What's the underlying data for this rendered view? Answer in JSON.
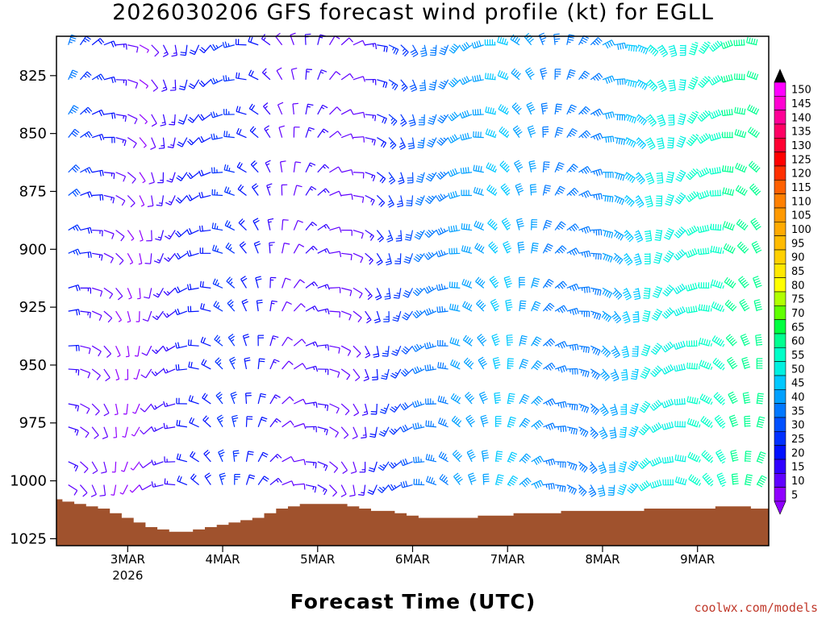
{
  "title": "2026030206 GFS forecast wind profile (kt) for EGLL",
  "xlabel": "Forecast Time (UTC)",
  "credit": "coolwx.com/models",
  "chart_data": {
    "type": "wind-barb time-height",
    "title": "2026030206 GFS forecast wind profile (kt) for EGLL",
    "xlabel": "Forecast Time (UTC)",
    "ylabel": "",
    "x_start": "2026-03-02 06Z",
    "x_step_hours": 3,
    "x_ticks": [
      {
        "label": "3MAR",
        "sub": "2026",
        "hour": 18
      },
      {
        "label": "4MAR",
        "sub": "",
        "hour": 42
      },
      {
        "label": "5MAR",
        "sub": "",
        "hour": 66
      },
      {
        "label": "6MAR",
        "sub": "",
        "hour": 90
      },
      {
        "label": "7MAR",
        "sub": "",
        "hour": 114
      },
      {
        "label": "8MAR",
        "sub": "",
        "hour": 138
      },
      {
        "label": "9MAR",
        "sub": "",
        "hour": 162
      }
    ],
    "xlim_hours": [
      0,
      180
    ],
    "y_ticks": [
      825,
      850,
      875,
      900,
      925,
      950,
      975,
      1000,
      1025
    ],
    "ylim_hpa": [
      808,
      1028
    ],
    "levels_hpa": [
      810,
      825,
      840,
      850,
      865,
      875,
      890,
      900,
      915,
      925,
      940,
      950,
      965,
      975,
      990,
      1000
    ],
    "wind_kt_by_level": [
      [
        40,
        35,
        25,
        22,
        20,
        15,
        10,
        8,
        10,
        15,
        15,
        20,
        20,
        20,
        25,
        25,
        22,
        20,
        15,
        12,
        12,
        15,
        15,
        12,
        10,
        12,
        15,
        20,
        25,
        28,
        30,
        35,
        35,
        38,
        40,
        42,
        44,
        45,
        45,
        42,
        40,
        38,
        35,
        35,
        35,
        38,
        40,
        42,
        45,
        48,
        50,
        50,
        50,
        52,
        55,
        55,
        58,
        60,
        60,
        60,
        55
      ],
      [
        42,
        38,
        28,
        25,
        22,
        15,
        10,
        8,
        10,
        15,
        15,
        20,
        20,
        20,
        25,
        25,
        22,
        20,
        15,
        12,
        12,
        15,
        15,
        12,
        10,
        12,
        15,
        20,
        25,
        28,
        30,
        35,
        35,
        38,
        40,
        42,
        44,
        45,
        45,
        42,
        40,
        38,
        35,
        35,
        35,
        38,
        40,
        42,
        45,
        48,
        50,
        50,
        50,
        52,
        55,
        55,
        58,
        60,
        60,
        60,
        55
      ],
      [
        40,
        36,
        28,
        24,
        20,
        15,
        10,
        8,
        10,
        15,
        15,
        20,
        20,
        22,
        25,
        25,
        22,
        20,
        15,
        12,
        12,
        15,
        15,
        12,
        10,
        12,
        15,
        20,
        25,
        28,
        30,
        35,
        35,
        38,
        40,
        42,
        44,
        45,
        45,
        42,
        40,
        38,
        35,
        35,
        35,
        38,
        40,
        42,
        45,
        48,
        50,
        50,
        50,
        52,
        55,
        55,
        58,
        60,
        60,
        60,
        55
      ],
      [
        38,
        34,
        28,
        24,
        20,
        15,
        10,
        8,
        10,
        15,
        15,
        20,
        20,
        22,
        25,
        25,
        22,
        20,
        15,
        12,
        12,
        15,
        15,
        12,
        10,
        12,
        15,
        20,
        25,
        28,
        30,
        35,
        35,
        38,
        40,
        42,
        44,
        45,
        45,
        42,
        40,
        38,
        35,
        35,
        35,
        38,
        40,
        42,
        45,
        48,
        50,
        50,
        50,
        52,
        55,
        55,
        58,
        60,
        60,
        60,
        55
      ],
      [
        36,
        32,
        26,
        22,
        18,
        14,
        10,
        8,
        10,
        15,
        15,
        20,
        20,
        22,
        25,
        25,
        22,
        20,
        15,
        12,
        12,
        15,
        15,
        12,
        10,
        12,
        15,
        20,
        25,
        28,
        30,
        35,
        35,
        38,
        40,
        42,
        44,
        45,
        45,
        42,
        40,
        38,
        35,
        35,
        35,
        38,
        40,
        42,
        45,
        48,
        50,
        50,
        50,
        52,
        55,
        55,
        58,
        60,
        60,
        60,
        55
      ],
      [
        34,
        30,
        24,
        20,
        16,
        12,
        10,
        8,
        10,
        15,
        15,
        20,
        20,
        22,
        25,
        25,
        22,
        20,
        15,
        12,
        12,
        15,
        15,
        12,
        10,
        12,
        15,
        20,
        25,
        28,
        30,
        35,
        35,
        38,
        40,
        42,
        44,
        45,
        45,
        42,
        40,
        38,
        35,
        35,
        35,
        38,
        40,
        42,
        45,
        48,
        50,
        50,
        50,
        52,
        55,
        55,
        58,
        60,
        60,
        60,
        55
      ],
      [
        32,
        28,
        22,
        18,
        14,
        10,
        8,
        8,
        10,
        15,
        15,
        20,
        20,
        22,
        25,
        25,
        22,
        20,
        15,
        12,
        12,
        15,
        15,
        12,
        10,
        12,
        15,
        20,
        25,
        28,
        30,
        35,
        35,
        38,
        40,
        42,
        44,
        45,
        45,
        42,
        40,
        38,
        35,
        35,
        35,
        38,
        40,
        42,
        45,
        48,
        50,
        50,
        50,
        52,
        55,
        55,
        58,
        60,
        60,
        60,
        55
      ],
      [
        30,
        26,
        20,
        16,
        12,
        10,
        8,
        8,
        10,
        15,
        15,
        20,
        20,
        22,
        25,
        25,
        22,
        20,
        15,
        12,
        12,
        15,
        15,
        12,
        10,
        12,
        15,
        20,
        25,
        28,
        30,
        35,
        35,
        38,
        40,
        42,
        44,
        45,
        45,
        42,
        40,
        38,
        35,
        35,
        35,
        38,
        40,
        42,
        45,
        48,
        50,
        50,
        50,
        52,
        55,
        55,
        58,
        60,
        60,
        60,
        55
      ],
      [
        28,
        24,
        18,
        14,
        12,
        10,
        8,
        8,
        10,
        15,
        15,
        20,
        20,
        22,
        25,
        25,
        22,
        20,
        15,
        12,
        12,
        15,
        15,
        12,
        10,
        12,
        15,
        20,
        25,
        28,
        30,
        35,
        35,
        38,
        40,
        42,
        44,
        45,
        45,
        42,
        40,
        38,
        35,
        35,
        35,
        38,
        40,
        42,
        45,
        48,
        50,
        50,
        50,
        52,
        55,
        55,
        58,
        60,
        60,
        60,
        55
      ],
      [
        26,
        22,
        16,
        12,
        10,
        8,
        8,
        8,
        10,
        15,
        15,
        20,
        20,
        22,
        25,
        25,
        22,
        20,
        15,
        12,
        12,
        15,
        15,
        12,
        10,
        12,
        15,
        20,
        25,
        28,
        30,
        35,
        35,
        38,
        40,
        42,
        44,
        45,
        45,
        42,
        40,
        38,
        35,
        35,
        35,
        38,
        40,
        42,
        45,
        48,
        50,
        50,
        50,
        52,
        55,
        55,
        58,
        60,
        60,
        60,
        55
      ],
      [
        24,
        20,
        14,
        12,
        10,
        8,
        8,
        8,
        10,
        15,
        15,
        20,
        20,
        22,
        25,
        25,
        22,
        20,
        15,
        12,
        12,
        15,
        15,
        12,
        10,
        12,
        15,
        20,
        25,
        28,
        30,
        35,
        35,
        38,
        40,
        42,
        44,
        45,
        45,
        42,
        40,
        38,
        35,
        35,
        35,
        38,
        40,
        42,
        45,
        48,
        50,
        50,
        50,
        52,
        55,
        55,
        58,
        60,
        60,
        60,
        55
      ],
      [
        22,
        18,
        14,
        12,
        10,
        8,
        8,
        8,
        10,
        15,
        15,
        20,
        20,
        22,
        25,
        25,
        22,
        20,
        15,
        12,
        12,
        15,
        15,
        12,
        10,
        12,
        15,
        20,
        25,
        28,
        30,
        35,
        35,
        38,
        40,
        42,
        44,
        45,
        45,
        42,
        40,
        38,
        35,
        35,
        35,
        38,
        40,
        42,
        45,
        48,
        50,
        50,
        50,
        52,
        55,
        55,
        58,
        60,
        60,
        60,
        55
      ],
      [
        22,
        18,
        14,
        12,
        10,
        8,
        8,
        8,
        10,
        15,
        15,
        20,
        20,
        22,
        25,
        25,
        22,
        20,
        15,
        12,
        12,
        15,
        15,
        12,
        10,
        12,
        15,
        20,
        25,
        28,
        30,
        35,
        35,
        38,
        40,
        42,
        44,
        45,
        45,
        42,
        40,
        38,
        35,
        35,
        35,
        38,
        40,
        42,
        45,
        48,
        50,
        50,
        50,
        52,
        55,
        55,
        58,
        60,
        60,
        60,
        55
      ],
      [
        20,
        16,
        12,
        10,
        10,
        8,
        8,
        8,
        10,
        15,
        15,
        20,
        20,
        22,
        25,
        25,
        22,
        20,
        15,
        12,
        12,
        15,
        15,
        12,
        10,
        12,
        15,
        20,
        25,
        28,
        30,
        35,
        35,
        38,
        40,
        42,
        44,
        45,
        45,
        42,
        40,
        38,
        35,
        35,
        35,
        38,
        40,
        42,
        45,
        48,
        50,
        50,
        50,
        52,
        55,
        55,
        58,
        60,
        60,
        60,
        55
      ],
      [
        18,
        15,
        12,
        10,
        10,
        8,
        8,
        8,
        10,
        15,
        15,
        20,
        20,
        22,
        25,
        25,
        22,
        20,
        15,
        12,
        12,
        15,
        15,
        12,
        10,
        12,
        15,
        20,
        25,
        28,
        30,
        35,
        35,
        38,
        40,
        42,
        44,
        45,
        45,
        42,
        40,
        38,
        35,
        35,
        35,
        38,
        40,
        42,
        45,
        48,
        50,
        50,
        50,
        52,
        55,
        55,
        58,
        60,
        60,
        60,
        55
      ],
      [
        15,
        12,
        10,
        10,
        10,
        8,
        8,
        8,
        10,
        15,
        15,
        20,
        20,
        22,
        25,
        25,
        22,
        20,
        15,
        12,
        12,
        15,
        15,
        12,
        10,
        12,
        15,
        20,
        25,
        28,
        30,
        35,
        35,
        38,
        40,
        42,
        44,
        45,
        45,
        42,
        40,
        38,
        35,
        35,
        35,
        38,
        40,
        42,
        45,
        48,
        50,
        50,
        50,
        52,
        55,
        55,
        58,
        60,
        60,
        60,
        55
      ]
    ],
    "surface_pressure_hpa": [
      1008,
      1009,
      1010,
      1011,
      1012,
      1014,
      1016,
      1018,
      1020,
      1021,
      1022,
      1022,
      1021,
      1020,
      1019,
      1018,
      1017,
      1016,
      1014,
      1012,
      1011,
      1010,
      1010,
      1010,
      1010,
      1011,
      1012,
      1013,
      1013,
      1014,
      1015,
      1016,
      1016,
      1016,
      1016,
      1016,
      1015,
      1015,
      1015,
      1014,
      1014,
      1014,
      1014,
      1013,
      1013,
      1013,
      1013,
      1013,
      1013,
      1013,
      1012,
      1012,
      1012,
      1012,
      1012,
      1012,
      1011,
      1011,
      1011,
      1012,
      1012
    ],
    "color_scale": {
      "labels": [
        "150",
        "145",
        "140",
        "135",
        "130",
        "125",
        "120",
        "115",
        "110",
        "105",
        "100",
        "95",
        "90",
        "85",
        "80",
        "75",
        "70",
        "65",
        "60",
        "55",
        "50",
        "45",
        "40",
        "35",
        "30",
        "25",
        "20",
        "15",
        "10",
        "5"
      ],
      "colors": [
        "#ff00ff",
        "#ff00d2",
        "#ff0096",
        "#ff0064",
        "#ff0032",
        "#ff0000",
        "#ff3000",
        "#ff6000",
        "#ff8000",
        "#ff9900",
        "#ffaa00",
        "#ffbb00",
        "#ffd000",
        "#ffe800",
        "#ffff00",
        "#b0ff00",
        "#60ff00",
        "#00ff40",
        "#00ff90",
        "#00ffc8",
        "#00f0e0",
        "#00c8ff",
        "#00a0ff",
        "#0078ff",
        "#0050ff",
        "#0030ff",
        "#0010ff",
        "#3000ff",
        "#6000ff",
        "#9000ff"
      ],
      "terrain_color": "#a0522d"
    }
  }
}
